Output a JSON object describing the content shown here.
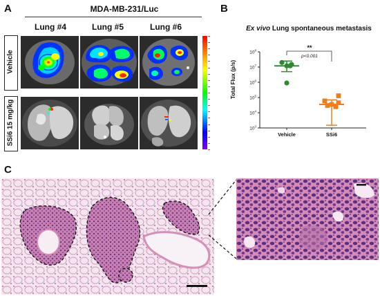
{
  "panel_a": {
    "letter": "A",
    "cell_line": "MDA-MB-231/Luc",
    "columns": [
      "Lung #4",
      "Lung #5",
      "Lung #6"
    ],
    "rows": [
      "Vehicle",
      "SSi6 15 mg/kg"
    ],
    "colorbar_colors": [
      "#ff0000",
      "#ff8800",
      "#ffff00",
      "#00ff00",
      "#00ffff",
      "#0000ff",
      "#8000ff"
    ],
    "colorbar_tick_count": 19
  },
  "panel_b": {
    "letter": "B",
    "title_italic": "Ex vivo",
    "title_rest": " Lung spontaneous metastasis",
    "significance": "**",
    "pvalue": "p<0.001",
    "colors": {
      "vehicle": "#2e8b2e",
      "ssi6": "#f07d1a"
    }
  },
  "chart_data": {
    "type": "scatter",
    "ylabel": "Total Flux (p/s)",
    "yscale": "log",
    "ylim": [
      1000,
      100000000
    ],
    "yticks": [
      {
        "base": "10",
        "exp": "3"
      },
      {
        "base": "10",
        "exp": "4"
      },
      {
        "base": "10",
        "exp": "5"
      },
      {
        "base": "10",
        "exp": "6"
      },
      {
        "base": "10",
        "exp": "7"
      },
      {
        "base": "10",
        "exp": "8"
      }
    ],
    "categories": [
      "Vehicle",
      "SSi6"
    ],
    "series": [
      {
        "category": "Vehicle",
        "values": [
          20000000,
          15000000,
          12000000,
          12000000,
          900000
        ],
        "mean": 12000000,
        "error": [
          5000000,
          25000000
        ]
      },
      {
        "category": "SSi6",
        "values": [
          130000,
          60000,
          45000,
          35000,
          30000,
          25000
        ],
        "mean": 35000,
        "error": [
          1500,
          70000
        ]
      }
    ]
  },
  "panel_c": {
    "letter": "C"
  }
}
